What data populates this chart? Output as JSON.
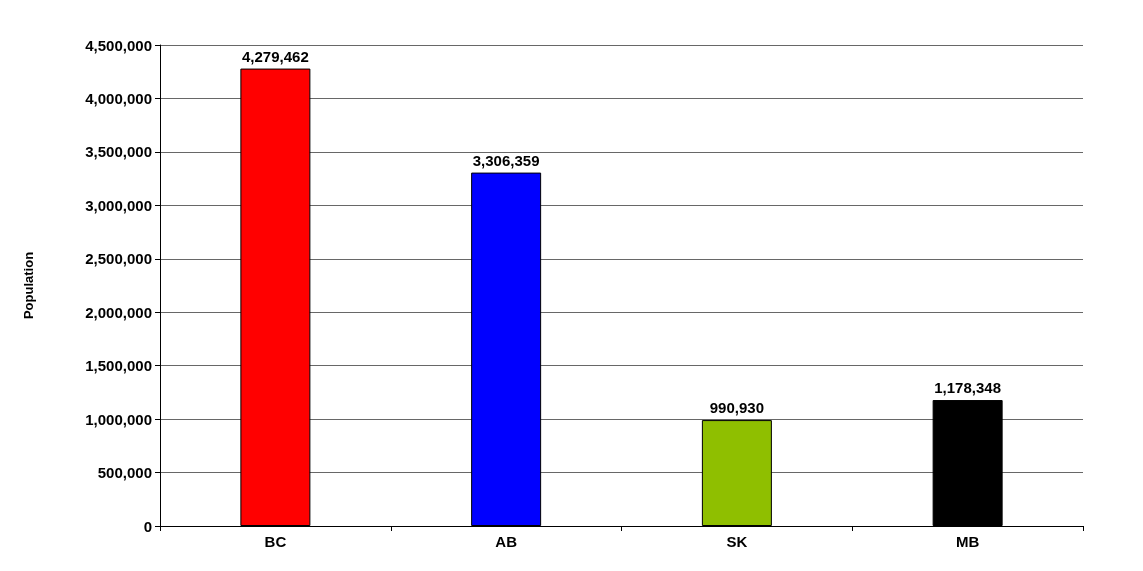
{
  "chart_data": {
    "type": "bar",
    "ylabel": "Population",
    "categories": [
      "BC",
      "AB",
      "SK",
      "MB"
    ],
    "values": [
      4279462,
      3306359,
      990930,
      1178348
    ],
    "value_labels": [
      "4,279,462",
      "3,306,359",
      "990,930",
      "1,178,348"
    ],
    "colors": [
      "#ff0000",
      "#0000ff",
      "#8fbf00",
      "#000000"
    ],
    "ylim": [
      0,
      4500000
    ],
    "yticks": [
      0,
      {
        "value": 500000,
        "label": "500,000"
      },
      {
        "value": 1000000,
        "label": "1,000,000"
      },
      {
        "value": 1500000,
        "label": "1,500,000"
      },
      {
        "value": 2000000,
        "label": "2,000,000"
      },
      {
        "value": 2500000,
        "label": "2,500,000"
      },
      {
        "value": 3000000,
        "label": "3,000,000"
      },
      {
        "value": 3500000,
        "label": "3,500,000"
      },
      {
        "value": 4000000,
        "label": "4,000,000"
      },
      {
        "value": 4500000,
        "label": "4,500,000"
      }
    ],
    "grid": "y"
  }
}
